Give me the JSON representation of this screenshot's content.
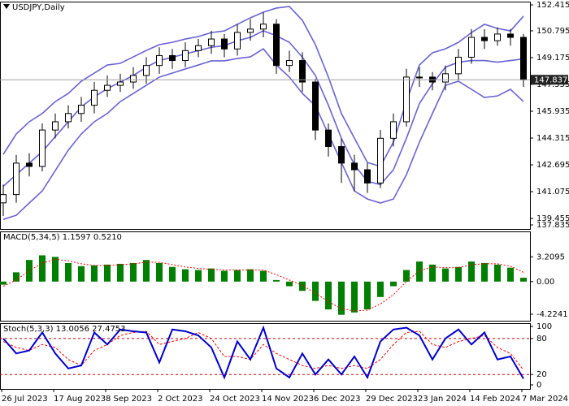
{
  "chart_data": [
    {
      "type": "candlestick",
      "title": "USDJPY,Daily",
      "categories": [
        "26 Jul 2023",
        null,
        null,
        null,
        "17 Aug 2023",
        null,
        null,
        null,
        "8 Sep 2023",
        null,
        null,
        null,
        "2 Oct 2023",
        null,
        null,
        null,
        "24 Oct 2023",
        null,
        null,
        null,
        "14 Nov 2023",
        null,
        null,
        null,
        "6 Dec 2023",
        null,
        null,
        null,
        "29 Dec 2023",
        null,
        null,
        null,
        "23 Jan 2024",
        null,
        null,
        null,
        "14 Feb 2024",
        null,
        null,
        null,
        "7 Mar 2024"
      ],
      "open": [
        140.4,
        140.9,
        142.8,
        142.6,
        144.8,
        145.3,
        145.8,
        146.3,
        147.2,
        147.5,
        147.7,
        148.1,
        148.7,
        149.3,
        149.0,
        149.6,
        149.9,
        150.3,
        149.7,
        150.7,
        150.9,
        151.2,
        148.7,
        149.0,
        147.7,
        144.8,
        143.8,
        142.8,
        142.4,
        141.6,
        144.3,
        145.3,
        148.0,
        148.0,
        147.7,
        148.2,
        149.2,
        150.4,
        150.2,
        150.6,
        150.4
      ],
      "high": [
        141.5,
        143.3,
        143.4,
        145.2,
        145.8,
        146.3,
        146.8,
        147.7,
        148.1,
        148.2,
        148.6,
        149.2,
        149.8,
        149.7,
        150.1,
        150.3,
        150.8,
        150.6,
        151.2,
        151.5,
        151.9,
        151.5,
        149.6,
        149.5,
        147.9,
        145.2,
        144.3,
        143.3,
        142.8,
        144.8,
        145.8,
        148.5,
        148.6,
        148.3,
        148.7,
        149.7,
        150.9,
        150.9,
        151.0,
        150.9,
        150.6
      ],
      "low": [
        139.6,
        140.4,
        142.0,
        142.3,
        144.3,
        144.9,
        145.3,
        145.8,
        146.8,
        147.1,
        147.3,
        147.6,
        148.2,
        148.5,
        148.6,
        149.2,
        149.4,
        149.2,
        149.3,
        150.2,
        150.4,
        148.2,
        148.3,
        147.1,
        144.2,
        143.2,
        141.6,
        141.1,
        141.0,
        141.3,
        143.8,
        145.0,
        147.4,
        147.2,
        147.2,
        147.8,
        148.8,
        149.7,
        149.9,
        149.9,
        147.4
      ],
      "close": [
        140.9,
        142.8,
        142.6,
        144.8,
        145.3,
        145.8,
        146.3,
        147.2,
        147.5,
        147.7,
        148.1,
        148.7,
        149.3,
        149.0,
        149.6,
        149.9,
        150.3,
        149.7,
        150.7,
        150.9,
        151.2,
        148.7,
        149.0,
        147.7,
        144.8,
        143.8,
        142.8,
        142.4,
        141.6,
        144.3,
        145.3,
        148.0,
        148.0,
        147.7,
        148.2,
        149.2,
        150.4,
        150.2,
        150.6,
        150.4,
        147.837
      ],
      "bands": {
        "color": "#6a63d4",
        "upper": [
          143.33,
          144.56,
          145.3,
          145.8,
          146.52,
          147.01,
          147.75,
          148.24,
          148.73,
          148.83,
          149.22,
          149.61,
          149.96,
          150.1,
          150.3,
          150.45,
          150.69,
          150.79,
          151.19,
          151.58,
          151.92,
          152.17,
          152.27,
          151.43,
          149.96,
          148.0,
          145.8,
          144.31,
          142.84,
          142.6,
          144.07,
          146.52,
          148.73,
          149.47,
          149.71,
          150.1,
          150.69,
          151.19,
          150.94,
          150.79,
          151.68
        ],
        "middle": [
          141.4,
          142.1,
          142.8,
          143.5,
          144.4,
          145.3,
          146.2,
          146.8,
          147.3,
          147.7,
          148.1,
          148.6,
          149.0,
          149.2,
          149.4,
          149.6,
          149.8,
          149.9,
          150.2,
          150.4,
          150.8,
          150.5,
          150.1,
          149.2,
          148.1,
          146.3,
          144.3,
          142.7,
          141.7,
          141.5,
          142.4,
          144.3,
          146.4,
          147.6,
          148.6,
          148.9,
          149.0,
          149.0,
          148.9,
          149.0,
          149.1
        ],
        "lower": [
          139.4,
          139.65,
          140.39,
          141.12,
          142.35,
          143.58,
          144.56,
          145.3,
          145.8,
          146.52,
          147.01,
          147.5,
          148.0,
          148.24,
          148.49,
          148.73,
          148.98,
          148.98,
          149.12,
          149.22,
          149.71,
          148.73,
          148.0,
          147.01,
          146.27,
          144.56,
          142.84,
          141.12,
          140.63,
          140.39,
          140.63,
          142.1,
          144.07,
          145.8,
          147.5,
          147.75,
          147.26,
          146.77,
          146.86,
          147.26,
          146.52
        ]
      },
      "ylim": [
        138.82,
        152.56
      ],
      "yticks": [
        152.415,
        150.795,
        149.175,
        147.555,
        145.935,
        144.315,
        142.695,
        141.075,
        139.455,
        137.835
      ]
    },
    {
      "type": "macd",
      "title": "MACD(5,34,5) 1.1597 0.5210",
      "histogram": [
        -0.4,
        1.2,
        2.8,
        3.4,
        3.2,
        2.4,
        2.0,
        2.1,
        2.2,
        2.3,
        2.4,
        2.8,
        2.4,
        1.9,
        1.6,
        1.5,
        1.7,
        1.4,
        1.5,
        1.6,
        1.4,
        0.2,
        -0.6,
        -1.2,
        -2.5,
        -3.6,
        -4.3,
        -4.0,
        -3.6,
        -2.0,
        -0.6,
        1.5,
        2.6,
        2.2,
        1.7,
        1.9,
        2.6,
        2.4,
        2.2,
        1.8,
        0.5
      ],
      "histogram_color": "#008000",
      "signal": [
        -0.6,
        0.2,
        1.4,
        2.4,
        2.9,
        2.7,
        2.3,
        2.1,
        2.1,
        2.2,
        2.3,
        2.5,
        2.5,
        2.2,
        1.9,
        1.7,
        1.6,
        1.5,
        1.5,
        1.5,
        1.5,
        0.9,
        0.2,
        -0.5,
        -1.5,
        -2.6,
        -3.5,
        -3.8,
        -3.7,
        -2.9,
        -1.7,
        0.0,
        1.4,
        1.9,
        1.8,
        1.8,
        2.2,
        2.3,
        2.3,
        2.0,
        1.2
      ],
      "signal_color": "#ff0000",
      "ylim": [
        -5.07,
        6.5
      ],
      "yticks": [
        3.2095,
        {
          "value": 0,
          "label": "0.00"
        },
        -4.2241
      ]
    },
    {
      "type": "stochastic",
      "title": "Stoch(5,3,3) 13.0056 27.4753",
      "k": [
        80,
        55,
        60,
        90,
        55,
        30,
        35,
        90,
        70,
        95,
        92,
        90,
        40,
        95,
        92,
        85,
        65,
        15,
        75,
        45,
        98,
        30,
        15,
        55,
        20,
        45,
        20,
        50,
        15,
        75,
        95,
        98,
        85,
        45,
        80,
        95,
        70,
        90,
        45,
        50,
        13.0056
      ],
      "k_color": "#0000cd",
      "d": [
        75,
        65,
        60,
        70,
        65,
        45,
        35,
        60,
        70,
        85,
        90,
        92,
        70,
        75,
        80,
        90,
        80,
        50,
        50,
        45,
        70,
        55,
        45,
        35,
        30,
        35,
        30,
        35,
        30,
        45,
        70,
        90,
        92,
        70,
        65,
        75,
        80,
        85,
        65,
        55,
        27.4753
      ],
      "d_color": "#ff0000",
      "levels": [
        80,
        20
      ],
      "ylim": [
        -4.1,
        105.5
      ],
      "yticks": [
        100,
        80,
        20,
        0
      ]
    }
  ]
}
